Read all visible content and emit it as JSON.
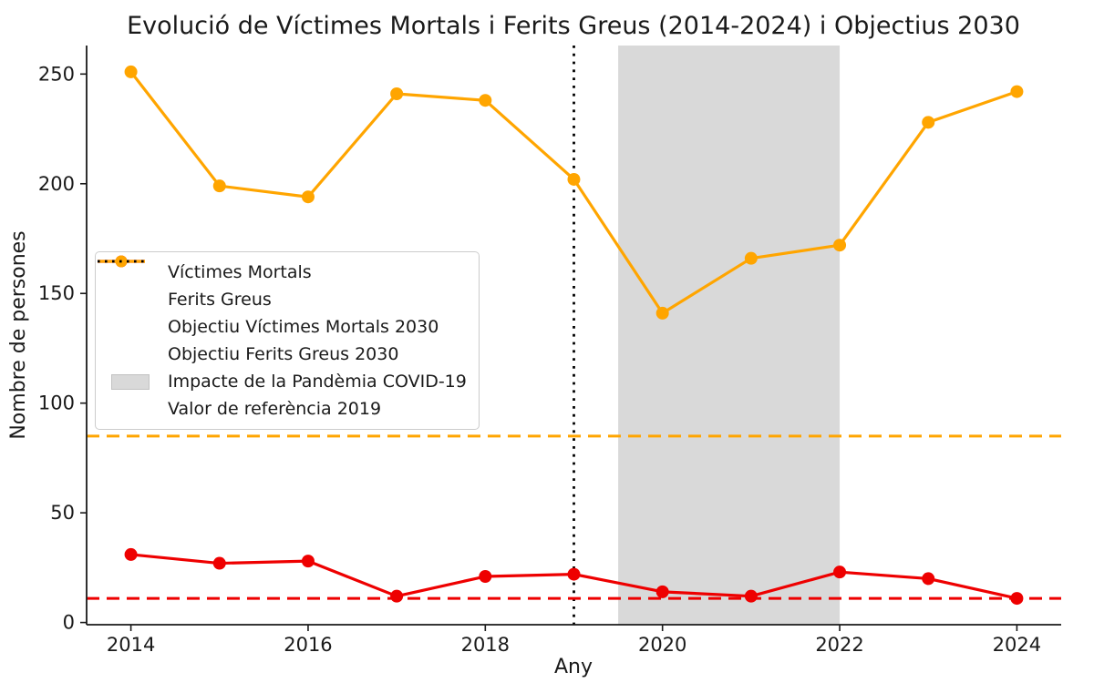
{
  "title": "Evolució de Víctimes Mortals i Ferits Greus (2014-2024) i Objectius 2030",
  "x_axis_label": "Any",
  "y_axis_label": "Nombre de persones",
  "colors": {
    "mortals": "#ee0000",
    "ferits": "#ffa500",
    "band": "#d9d9d9",
    "reference_line": "#000000",
    "text": "#1a1a1a"
  },
  "legend": {
    "items": [
      {
        "label": "Víctimes Mortals",
        "type": "line-marker",
        "color": "#ee0000"
      },
      {
        "label": "Ferits Greus",
        "type": "line-marker",
        "color": "#ffa500"
      },
      {
        "label": "Objectiu Víctimes Mortals 2030",
        "type": "dashed",
        "color": "#ee0000"
      },
      {
        "label": "Objectiu Ferits Greus 2030",
        "type": "dashed",
        "color": "#ffa500"
      },
      {
        "label": "Impacte de la Pandèmia COVID-19",
        "type": "patch",
        "color": "#d9d9d9"
      },
      {
        "label": "Valor de referència 2019",
        "type": "dotted",
        "color": "#000000"
      }
    ]
  },
  "chart_data": {
    "type": "line",
    "title": "Evolució de Víctimes Mortals i Ferits Greus (2014-2024) i Objectius 2030",
    "xlabel": "Any",
    "ylabel": "Nombre de persones",
    "x": [
      2014,
      2015,
      2016,
      2017,
      2018,
      2019,
      2020,
      2021,
      2022,
      2023,
      2024
    ],
    "series": [
      {
        "name": "Víctimes Mortals",
        "color": "#ee0000",
        "values": [
          31,
          27,
          28,
          12,
          21,
          22,
          14,
          12,
          23,
          20,
          11
        ]
      },
      {
        "name": "Ferits Greus",
        "color": "#ffa500",
        "values": [
          251,
          199,
          194,
          241,
          238,
          202,
          141,
          166,
          172,
          228,
          242
        ]
      }
    ],
    "reference_lines": [
      {
        "label": "Objectiu Víctimes Mortals 2030",
        "y": 11,
        "color": "#ee0000",
        "style": "dashed"
      },
      {
        "label": "Objectiu Ferits Greus 2030",
        "y": 85,
        "color": "#ffa500",
        "style": "dashed"
      }
    ],
    "vertical_line": {
      "label": "Valor de referència 2019",
      "x": 2019,
      "color": "#000000",
      "style": "dotted"
    },
    "band": {
      "label": "Impacte de la Pandèmia COVID-19",
      "x0": 2019.5,
      "x1": 2022,
      "color": "#d9d9d9"
    },
    "xlim": [
      2013.5,
      2024.5
    ],
    "ylim": [
      -1,
      263
    ],
    "x_ticks": [
      2014,
      2016,
      2018,
      2020,
      2022,
      2024
    ],
    "y_ticks": [
      0,
      50,
      100,
      150,
      200,
      250
    ],
    "grid": false,
    "legend_position": "center-left"
  }
}
